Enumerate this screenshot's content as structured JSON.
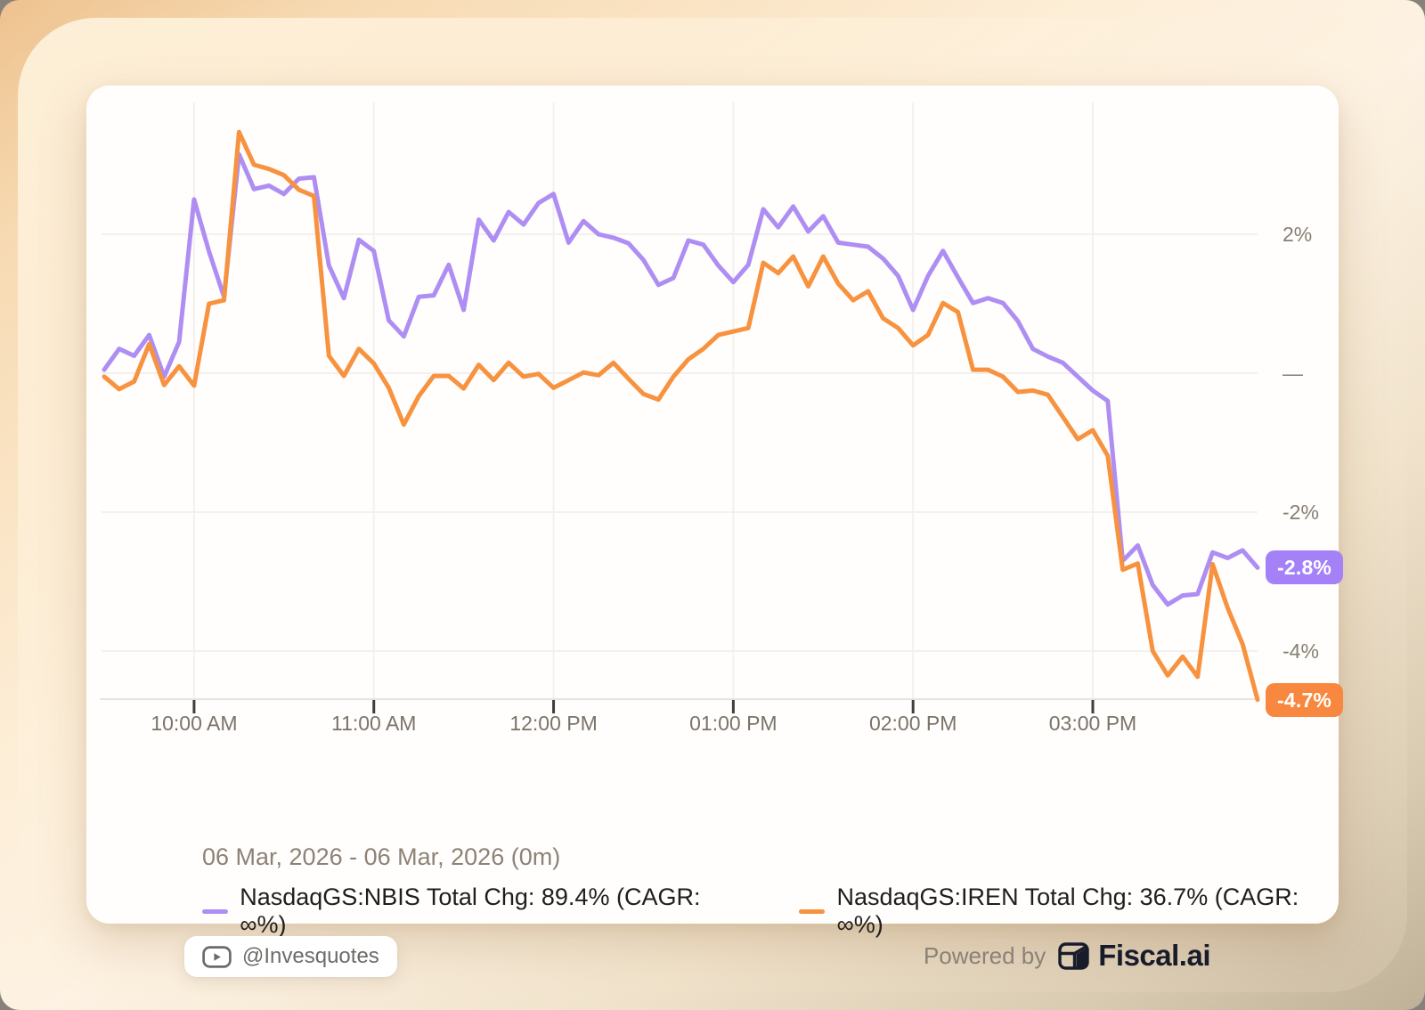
{
  "card": {
    "date_range": "06 Mar, 2026 - 06 Mar, 2026 (0m)",
    "attribution": {
      "handle": "@Invesquotes",
      "icon": "play-icon"
    },
    "powered_by": {
      "prefix": "Powered by",
      "brand": "Fiscal.ai",
      "icon": "fiscal-logo-icon"
    }
  },
  "colors": {
    "nbis_line": "#ae8ef2",
    "nbis_badge": "#a581f7",
    "iren_line": "#f7923f",
    "iren_badge": "#f8883f",
    "grid": "#f3f1ee",
    "axis": "#e6e3df",
    "tick": "#403e3b",
    "x_label": "#7b7368",
    "y_label": "#877e72",
    "legend_text": "#1f1e1c",
    "muted_text": "#8d8275",
    "card_bg": "#fffefd"
  },
  "chart_data": {
    "type": "line",
    "title": "",
    "unit": "%",
    "x_start_time": "9:30 AM",
    "x_end_time": "3:55 PM",
    "x_interval_min": 5,
    "x_tick_labels": [
      "10:00 AM",
      "11:00 AM",
      "12:00 PM",
      "01:00 PM",
      "02:00 PM",
      "03:00 PM"
    ],
    "x_tick_indices": [
      6,
      18,
      30,
      42,
      54,
      66
    ],
    "y_ticks": [
      {
        "label": "2%",
        "value": 2
      },
      {
        "label": "—",
        "value": 0
      },
      {
        "label": "-2%",
        "value": -2
      },
      {
        "label": "-4%",
        "value": -4
      }
    ],
    "ylim": [
      -4.9,
      3.9
    ],
    "grid": true,
    "legend_position": "bottom",
    "series": [
      {
        "key": "nbis",
        "name": "NasdaqGS:NBIS",
        "legend_label": "NasdaqGS:NBIS Total Chg: 89.4% (CAGR: ∞%)",
        "total_change_pct": 89.4,
        "cagr": "∞%",
        "line_color": "#ae8ef2",
        "badge_color": "#a581f7",
        "end_label": "-2.8%",
        "values": [
          0.05,
          0.35,
          0.25,
          0.55,
          -0.05,
          0.45,
          2.5,
          1.75,
          1.1,
          3.15,
          2.65,
          2.7,
          2.58,
          2.8,
          2.82,
          1.55,
          1.08,
          1.92,
          1.76,
          0.76,
          0.53,
          1.1,
          1.12,
          1.56,
          0.91,
          2.21,
          1.91,
          2.32,
          2.14,
          2.45,
          2.58,
          1.88,
          2.19,
          2.0,
          1.95,
          1.87,
          1.63,
          1.27,
          1.37,
          1.91,
          1.85,
          1.55,
          1.31,
          1.56,
          2.36,
          2.1,
          2.4,
          2.04,
          2.26,
          1.88,
          1.85,
          1.82,
          1.65,
          1.4,
          0.91,
          1.4,
          1.76,
          1.38,
          1.01,
          1.08,
          1.01,
          0.75,
          0.35,
          0.24,
          0.15,
          -0.05,
          -0.25,
          -0.4,
          -2.7,
          -2.48,
          -3.05,
          -3.33,
          -3.2,
          -3.18,
          -2.58,
          -2.66,
          -2.55,
          -2.8
        ]
      },
      {
        "key": "iren",
        "name": "NasdaqGS:IREN",
        "legend_label": "NasdaqGS:IREN Total Chg: 36.7% (CAGR: ∞%)",
        "total_change_pct": 36.7,
        "cagr": "∞%",
        "line_color": "#f7923f",
        "badge_color": "#f8883f",
        "end_label": "-4.7%",
        "values": [
          -0.05,
          -0.23,
          -0.12,
          0.42,
          -0.17,
          0.1,
          -0.18,
          1.0,
          1.05,
          3.47,
          3.0,
          2.94,
          2.85,
          2.64,
          2.55,
          0.25,
          -0.04,
          0.35,
          0.14,
          -0.21,
          -0.74,
          -0.33,
          -0.04,
          -0.04,
          -0.22,
          0.12,
          -0.1,
          0.15,
          -0.05,
          -0.01,
          -0.21,
          -0.1,
          0.01,
          -0.03,
          0.15,
          -0.08,
          -0.3,
          -0.38,
          -0.05,
          0.2,
          0.35,
          0.55,
          0.6,
          0.65,
          1.59,
          1.44,
          1.68,
          1.25,
          1.68,
          1.29,
          1.05,
          1.18,
          0.79,
          0.65,
          0.4,
          0.55,
          1.01,
          0.88,
          0.05,
          0.05,
          -0.05,
          -0.27,
          -0.25,
          -0.31,
          -0.63,
          -0.95,
          -0.82,
          -1.19,
          -2.83,
          -2.74,
          -4.0,
          -4.35,
          -4.08,
          -4.37,
          -2.75,
          -3.38,
          -3.9,
          -4.7
        ]
      }
    ]
  }
}
